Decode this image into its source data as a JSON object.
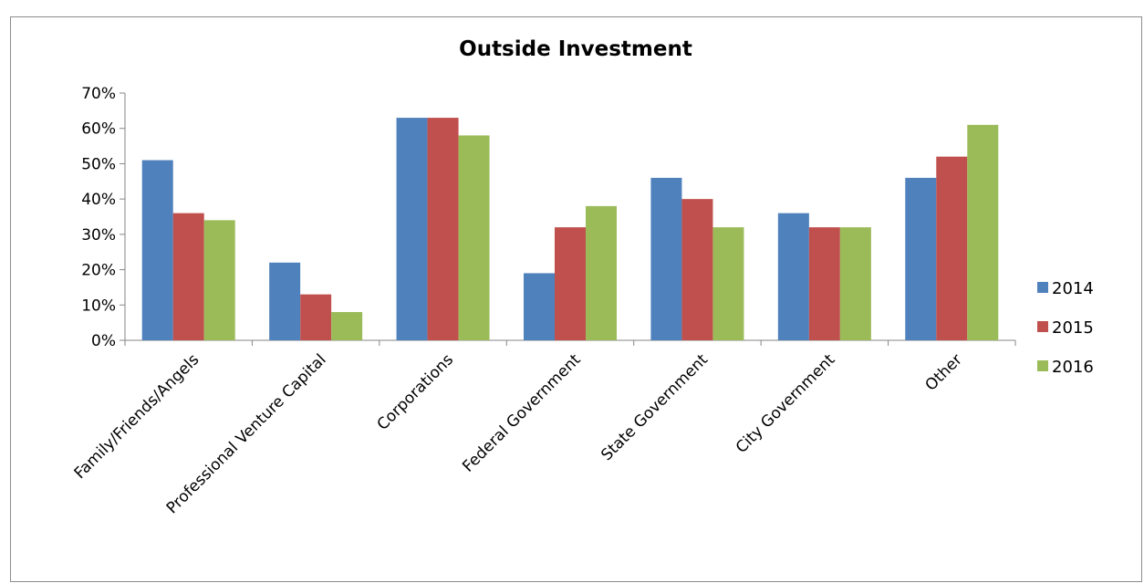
{
  "chart_data": {
    "type": "bar",
    "title": "Outside Investment",
    "xlabel": "",
    "ylabel": "",
    "categories": [
      "Family/Friends/Angels",
      "Professional Venture Capital",
      "Corporations",
      "Federal Government",
      "State Government",
      "City Government",
      "Other"
    ],
    "series": [
      {
        "name": "2014",
        "color": "#4f81bd",
        "values": [
          0.51,
          0.22,
          0.63,
          0.19,
          0.46,
          0.36,
          0.46
        ]
      },
      {
        "name": "2015",
        "color": "#c0504d",
        "values": [
          0.36,
          0.13,
          0.63,
          0.32,
          0.4,
          0.32,
          0.52
        ]
      },
      {
        "name": "2016",
        "color": "#9bbb59",
        "values": [
          0.34,
          0.08,
          0.58,
          0.38,
          0.32,
          0.32,
          0.61
        ]
      }
    ],
    "ylim": [
      0,
      0.7
    ],
    "yticks": [
      "0%",
      "10%",
      "20%",
      "30%",
      "40%",
      "50%",
      "60%",
      "70%"
    ],
    "grid": false,
    "legend_position": "right"
  }
}
